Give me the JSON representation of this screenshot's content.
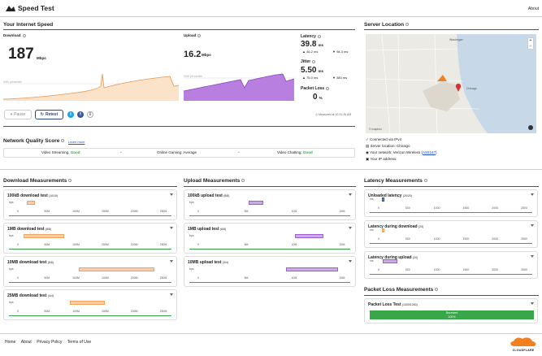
{
  "header": {
    "title": "Speed Test",
    "about": "About"
  },
  "internet": {
    "title": "Your Internet Speed"
  },
  "download": {
    "label": "Download",
    "value": "187",
    "unit": "Mbps",
    "pct": "90th percentile"
  },
  "upload": {
    "label": "Upload",
    "value": "16.2",
    "unit": "Mbps",
    "pct": "90th percentile"
  },
  "latency": {
    "label": "Latency",
    "value": "39.8",
    "unit": "ms",
    "up": "46.2",
    "up_unit": "ms",
    "down": "98.3",
    "down_unit": "ms"
  },
  "jitter": {
    "label": "Jitter",
    "value": "5.50",
    "unit": "ms",
    "up": "75.0",
    "up_unit": "ms",
    "down": "380",
    "down_unit": "ms"
  },
  "packet": {
    "label": "Packet Loss",
    "value": "0",
    "unit": "%"
  },
  "controls": {
    "pause": "Pause",
    "retest": "Retest",
    "measured": "Measured at 10:31:26 AM"
  },
  "quality": {
    "title": "Network Quality Score",
    "learn": "Learn more",
    "streaming_label": "Video Streaming:",
    "streaming": "Good",
    "gaming_label": "Online Gaming:",
    "gaming": "Average",
    "chatting_label": "Video Chatting:",
    "chatting": "Good",
    "dot": "•"
  },
  "server": {
    "title": "Server Location",
    "city1": "Waukegan",
    "city2": "Chicago",
    "map_credit": "© mapbox",
    "zoom_in": "+",
    "zoom_out": "−",
    "ipv4": "Connected via IPv4",
    "location": "Server location: Chicago",
    "network_pre": "Your network: Verizon Wireless (",
    "asn": "AS6167",
    "network_post": ")",
    "ip": "Your IP address:"
  },
  "dl_meas": {
    "title": "Download Measurements",
    "tests": [
      {
        "name": "100kB download test",
        "count": "(10/10)"
      },
      {
        "name": "1MB download test",
        "count": "(8/8)"
      },
      {
        "name": "10MB download test",
        "count": "(6/6)"
      },
      {
        "name": "25MB download test",
        "count": "(4/4)"
      }
    ],
    "ticks": [
      "0",
      "50M",
      "100M",
      "150M",
      "200M",
      "250M"
    ],
    "unit": "bps"
  },
  "ul_meas": {
    "title": "Upload Measurements",
    "tests": [
      {
        "name": "100kB upload test",
        "count": "(8/8)"
      },
      {
        "name": "1MB upload test",
        "count": "(6/6)"
      },
      {
        "name": "10MB upload test",
        "count": "(4/4)"
      }
    ],
    "ticks": [
      "0",
      "5M",
      "10M",
      "15M"
    ],
    "unit": "bps"
  },
  "lat_meas": {
    "title": "Latency Measurements",
    "tests": [
      {
        "name": "Unloaded latency",
        "count": "(20/20)"
      },
      {
        "name": "Latency during download",
        "count": "(20)"
      },
      {
        "name": "Latency during upload",
        "count": "(20)"
      }
    ],
    "ticks": [
      "0",
      "500",
      "1000",
      "1500",
      "2000",
      "2500"
    ],
    "unit": "ms"
  },
  "pl_meas": {
    "title": "Packet Loss Measurements",
    "test": "Packet Loss Test",
    "count": "(1000/1000)",
    "received": "Received",
    "pct": "100%"
  },
  "footer": {
    "home": "Home",
    "about": "About",
    "privacy": "Privacy Policy",
    "terms": "Terms of Use",
    "brand": "CLOUDFLARE"
  },
  "colors": {
    "download": "#f0a35e",
    "upload": "#a05fd0",
    "good": "#3aa64a",
    "link": "#1a55c7",
    "border": "#555"
  }
}
